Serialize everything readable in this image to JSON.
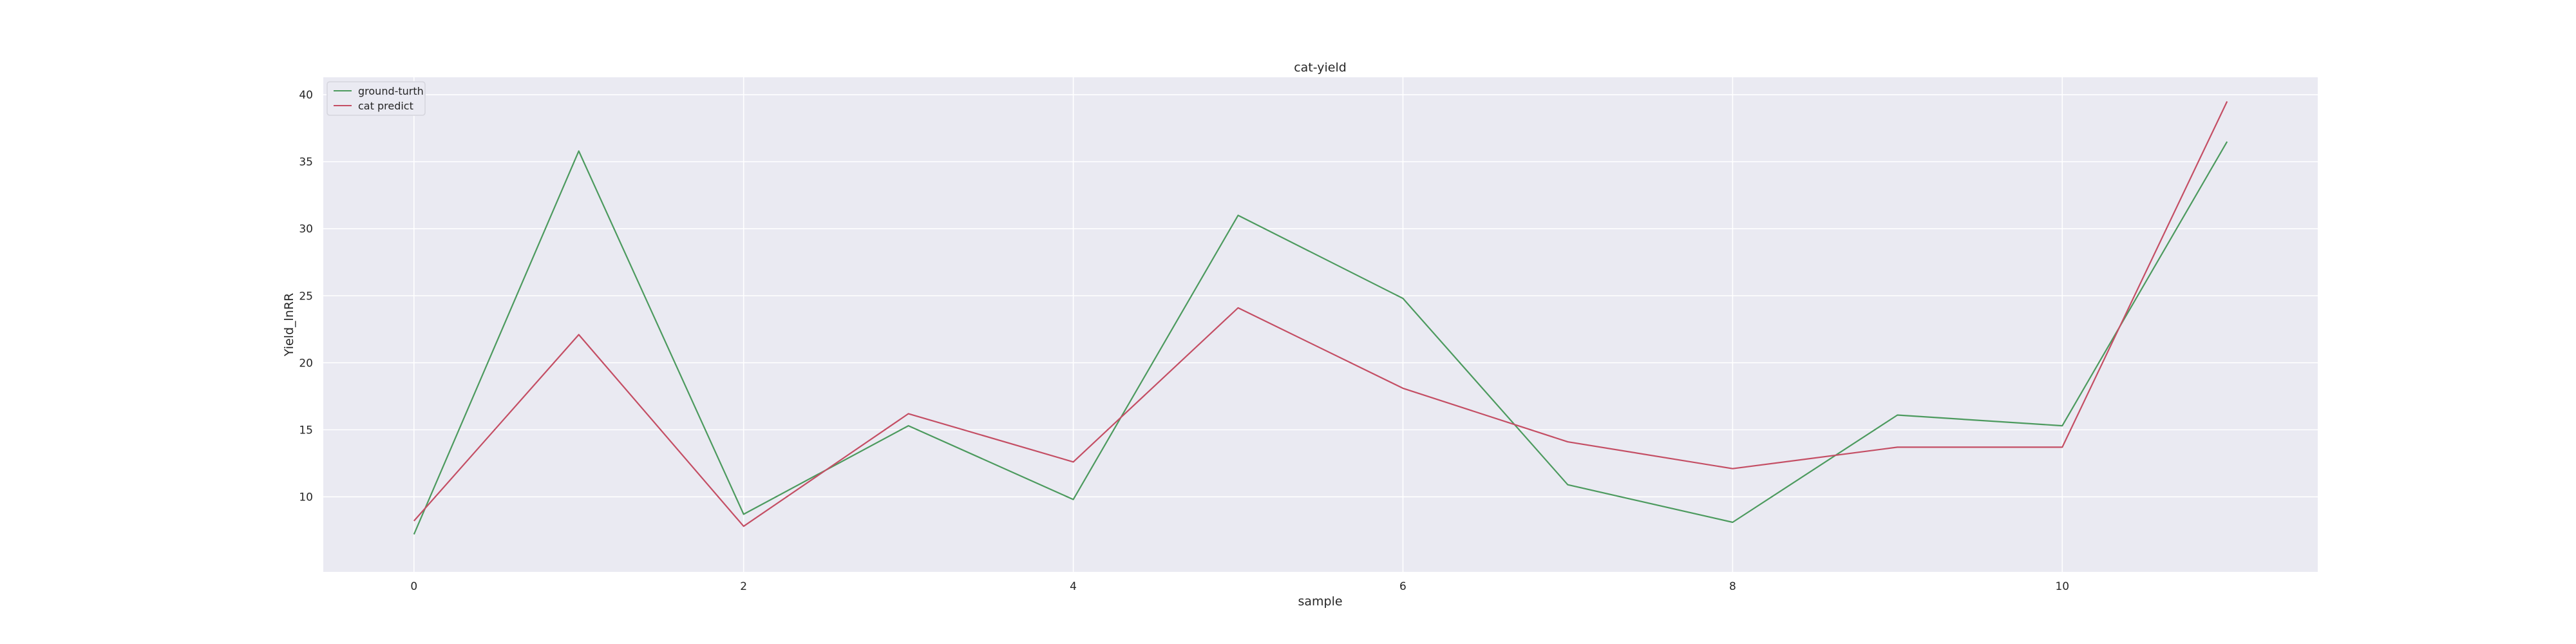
{
  "chart_data": {
    "type": "line",
    "title": "cat-yield",
    "xlabel": "sample",
    "ylabel": "Yield_lnRR",
    "x": [
      0,
      1,
      2,
      3,
      4,
      5,
      6,
      7,
      8,
      9,
      10,
      11
    ],
    "xlim": [
      -0.55,
      11.55
    ],
    "ylim": [
      4.4,
      41.3
    ],
    "xticks": [
      0,
      2,
      4,
      6,
      8,
      10
    ],
    "yticks": [
      10,
      15,
      20,
      25,
      30,
      35,
      40
    ],
    "grid": true,
    "legend_position": "top-left",
    "series": [
      {
        "name": "ground-turth",
        "color": "#4c9a5e",
        "values": [
          7.2,
          35.8,
          8.7,
          15.3,
          9.8,
          31.0,
          24.8,
          10.9,
          8.1,
          16.1,
          15.3,
          36.5
        ]
      },
      {
        "name": "cat predict",
        "color": "#c44e64",
        "values": [
          8.2,
          22.1,
          7.8,
          16.2,
          12.6,
          24.1,
          18.1,
          14.1,
          12.1,
          13.7,
          13.7,
          39.5
        ]
      }
    ]
  },
  "colors": {
    "plot_background": "#eaeaf2",
    "grid": "#ffffff"
  }
}
